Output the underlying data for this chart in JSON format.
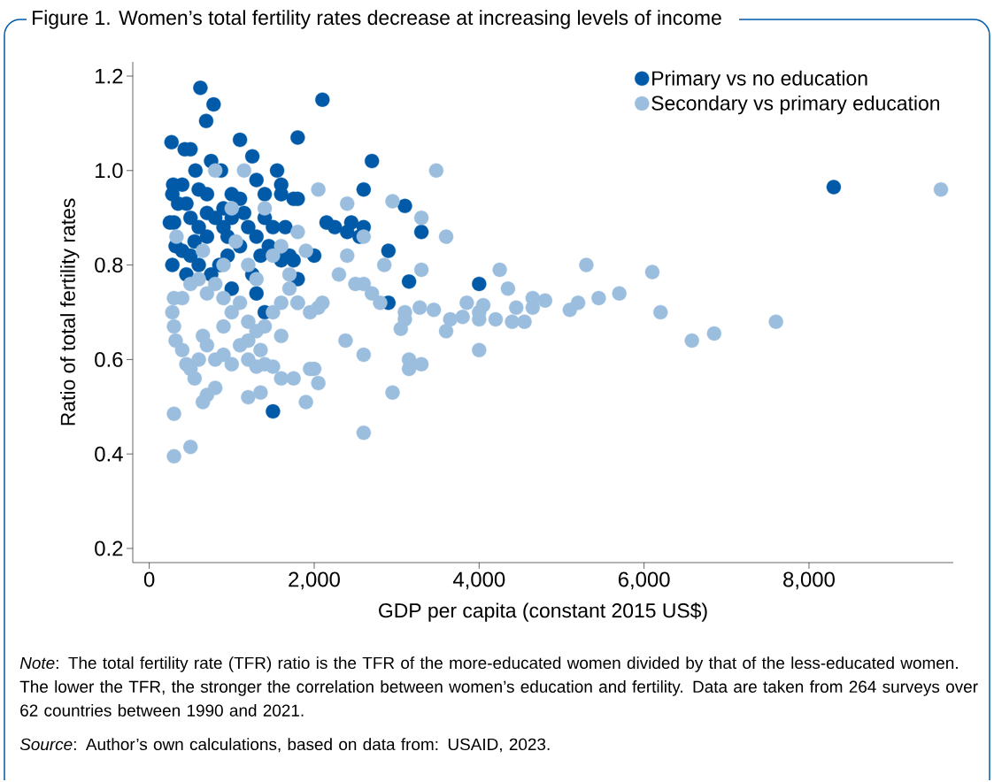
{
  "chart_data": {
    "type": "scatter",
    "title": "Figure 1. Women’s total fertility rates decrease at increasing levels of income",
    "xlabel": "GDP per capita (constant 2015 US$)",
    "ylabel": "Ratio of total fertility rates",
    "xlim": [
      -200,
      9750
    ],
    "ylim": [
      0.17,
      1.23
    ],
    "xticks": [
      {
        "value": 0,
        "label": "0"
      },
      {
        "value": 2000,
        "label": "2,000"
      },
      {
        "value": 4000,
        "label": "4,000"
      },
      {
        "value": 6000,
        "label": "6,000"
      },
      {
        "value": 8000,
        "label": "8,000"
      }
    ],
    "yticks": [
      {
        "value": 0.2,
        "label": "0.2"
      },
      {
        "value": 0.4,
        "label": "0.4"
      },
      {
        "value": 0.6,
        "label": "0.6"
      },
      {
        "value": 0.8,
        "label": "0.8"
      },
      {
        "value": 1.0,
        "label": "1.0"
      },
      {
        "value": 1.2,
        "label": "1.2"
      }
    ],
    "grid": false,
    "legend": "top right",
    "marker": "circle",
    "series": [
      {
        "name": "Primary vs no education",
        "color": "#005aa8",
        "x": [
          270,
          620,
          780,
          690,
          2100,
          1100,
          1800,
          430,
          500,
          290,
          280,
          400,
          560,
          750,
          870,
          1250,
          1550,
          1600,
          1800,
          2150,
          2450,
          2600,
          2700,
          3100,
          3300,
          2900,
          3150,
          2900,
          4000,
          8300,
          1500,
          1600,
          1750,
          1400,
          1300,
          1000,
          900,
          700,
          600,
          450,
          350,
          300,
          250,
          320,
          280,
          400,
          500,
          600,
          700,
          800,
          900,
          1000,
          1100,
          1200,
          1300,
          1400,
          1500,
          1650,
          1700,
          1900,
          2000,
          1800,
          2400,
          2550,
          2600,
          2500,
          1350,
          1200,
          1100,
          950,
          850,
          750,
          600,
          500,
          450,
          1000,
          1300,
          1400,
          1250,
          1600,
          2250,
          700,
          550,
          950,
          1150,
          1450,
          1750
        ],
        "values": [
          1.06,
          1.175,
          1.14,
          1.105,
          1.15,
          1.065,
          1.07,
          1.045,
          1.045,
          0.97,
          0.95,
          0.97,
          1.0,
          1.02,
          1.0,
          1.03,
          1.0,
          0.97,
          0.94,
          0.89,
          0.89,
          0.96,
          1.02,
          0.925,
          0.87,
          0.83,
          0.765,
          0.72,
          0.76,
          0.965,
          0.49,
          0.95,
          0.94,
          0.95,
          0.98,
          0.95,
          0.92,
          0.95,
          0.96,
          0.93,
          0.93,
          0.89,
          0.89,
          0.84,
          0.8,
          0.83,
          0.9,
          0.88,
          0.86,
          0.9,
          0.88,
          0.9,
          0.94,
          0.88,
          0.86,
          0.9,
          0.88,
          0.88,
          0.82,
          null,
          0.82,
          0.77,
          0.87,
          0.86,
          0.88,
          null,
          0.82,
          null,
          0.84,
          0.82,
          0.8,
          0.78,
          0.8,
          0.82,
          0.78,
          0.75,
          0.74,
          0.7,
          0.78,
          0.81,
          0.88,
          0.91,
          0.85,
          0.86,
          0.91,
          0.84,
          0.81
        ]
      },
      {
        "name": "Secondary vs primary education",
        "color": "#9bbede",
        "x": [
          9600,
          3480,
          2050,
          2950,
          3300,
          3600,
          2400,
          2600,
          2400,
          2850,
          3300,
          4250,
          5300,
          6100,
          4350,
          4650,
          4800,
          5700,
          5450,
          5200,
          5100,
          6200,
          4650,
          4450,
          4400,
          4550,
          4200,
          4000,
          4000,
          4050,
          3850,
          3800,
          3650,
          3600,
          3450,
          3280,
          3100,
          3100,
          3050,
          2800,
          2700,
          2600,
          2500,
          2300,
          2100,
          2050,
          1950,
          1800,
          1700,
          1600,
          1500,
          1400,
          1300,
          1200,
          1100,
          1000,
          900,
          800,
          700,
          600,
          500,
          400,
          300,
          280,
          300,
          320,
          400,
          450,
          500,
          550,
          600,
          650,
          700,
          800,
          900,
          1000,
          1100,
          1200,
          1300,
          1400,
          1500,
          1600,
          1600,
          1750,
          1900,
          2000,
          2050,
          1950,
          1200,
          1350,
          800,
          700,
          650,
          300,
          300,
          500,
          2380,
          2600,
          2950,
          3150,
          3150,
          3300,
          4000,
          2600,
          6580,
          6850,
          7600,
          1050,
          1150,
          800,
          1400,
          1600,
          900,
          1200,
          1800,
          1900,
          1500,
          650,
          330,
          1000,
          1700,
          1300,
          1800,
          1350,
          1200,
          900
        ],
        "values": [
          0.96,
          1.0,
          0.96,
          0.935,
          0.9,
          0.86,
          0.93,
          0.86,
          0.82,
          0.8,
          0.79,
          0.79,
          0.8,
          0.785,
          0.75,
          0.73,
          0.725,
          0.74,
          0.73,
          0.72,
          0.705,
          0.7,
          0.71,
          0.71,
          0.68,
          0.68,
          0.685,
          0.7,
          0.685,
          0.715,
          0.72,
          0.69,
          0.685,
          0.66,
          0.705,
          0.71,
          0.7,
          0.685,
          0.665,
          0.72,
          0.74,
          0.76,
          0.76,
          0.78,
          0.72,
          0.71,
          0.7,
          0.72,
          0.75,
          0.72,
          0.7,
          0.67,
          0.66,
          0.68,
          0.72,
          0.7,
          0.73,
          0.76,
          0.74,
          0.77,
          0.76,
          0.73,
          0.73,
          0.7,
          0.67,
          0.64,
          0.62,
          0.59,
          0.58,
          0.56,
          0.6,
          0.65,
          0.63,
          0.6,
          0.61,
          0.59,
          0.63,
          0.6,
          0.585,
          0.59,
          0.585,
          0.56,
          0.65,
          0.56,
          0.51,
          0.58,
          0.55,
          0.58,
          0.52,
          0.53,
          0.54,
          0.525,
          0.51,
          0.485,
          0.395,
          0.415,
          0.64,
          0.61,
          0.53,
          0.6,
          0.58,
          0.59,
          0.62,
          0.445,
          0.64,
          0.655,
          0.68,
          0.85,
          1.0,
          1.0,
          0.92,
          0.84,
          0.8,
          0.8,
          0.87,
          0.83,
          0.82,
          0.83,
          0.86,
          0.92,
          0.78,
          0.77,
          0.72,
          0.62,
          0.64,
          0.67
        ]
      }
    ],
    "annotations": [
      "*Note*: The total fertility rate (TFR) ratio is the TFR of the more-educated women divided by that of the less-educated women. The lower the TFR, the stronger the correlation between women’s education and fertility. Data are taken from 264 surveys over 62 countries between 1990 and 2021.",
      "*Source*: Author’s own calculations, based on data from: USAID, 2023."
    ]
  }
}
